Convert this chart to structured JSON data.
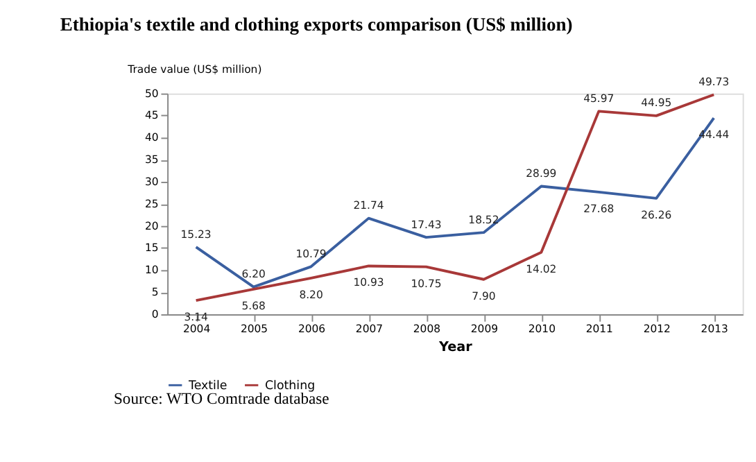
{
  "chart_data": {
    "type": "line",
    "title": "Ethiopia's textile and clothing exports comparison (US$ million)",
    "xlabel": "Year",
    "ylabel": "Trade value (US$ million)",
    "categories": [
      "2004",
      "2005",
      "2006",
      "2007",
      "2008",
      "2009",
      "2010",
      "2011",
      "2012",
      "2013"
    ],
    "series": [
      {
        "name": "Textile",
        "color": "#3a5fa0",
        "values": [
          15.23,
          6.2,
          10.79,
          21.74,
          17.43,
          18.52,
          28.99,
          27.68,
          26.26,
          44.44
        ],
        "value_labels": [
          "15.23",
          "6.20",
          "10.79",
          "21.74",
          "17.43",
          "18.52",
          "28.99",
          "27.68",
          "26.26",
          "44.44"
        ]
      },
      {
        "name": "Clothing",
        "color": "#a83838",
        "values": [
          3.14,
          5.68,
          8.2,
          10.93,
          10.75,
          7.9,
          14.02,
          45.97,
          44.95,
          49.73
        ],
        "value_labels": [
          "3.14",
          "5.68",
          "8.20",
          "10.93",
          "10.75",
          "7.90",
          "14.02",
          "45.97",
          "44.95",
          "49.73"
        ]
      }
    ],
    "ylim": [
      0,
      50
    ],
    "yticks": [
      0,
      5,
      10,
      15,
      20,
      25,
      30,
      35,
      40,
      45,
      50
    ],
    "grid": false,
    "legend": "bottom",
    "line_style": "solid",
    "marker": "none",
    "annotations": [
      "Source: WTO Comtrade database"
    ]
  }
}
